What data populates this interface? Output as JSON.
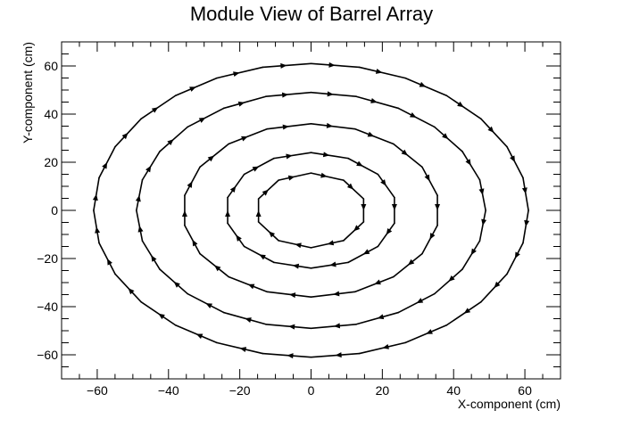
{
  "chart_data": {
    "type": "line",
    "title": "Module View of Barrel Array",
    "xlabel": "X-component (cm)",
    "ylabel": "Y-component (cm)",
    "xlim": [
      -70,
      70
    ],
    "ylim": [
      -70,
      70
    ],
    "x_ticks": [
      -60,
      -40,
      -20,
      0,
      20,
      40,
      60
    ],
    "y_ticks": [
      -60,
      -40,
      -20,
      0,
      20,
      40,
      60
    ],
    "x_minor_step": 5,
    "y_minor_step": 5,
    "grid": false,
    "legend": "none",
    "line_color": "#000000",
    "series": [
      {
        "layer": 1,
        "radius": 15.5,
        "modules": 10,
        "phase_deg": 90
      },
      {
        "layer": 2,
        "radius": 24.0,
        "modules": 14,
        "phase_deg": 90
      },
      {
        "layer": 3,
        "radius": 36.0,
        "modules": 18,
        "phase_deg": 90
      },
      {
        "layer": 4,
        "radius": 49.0,
        "modules": 24,
        "phase_deg": 90
      },
      {
        "layer": 5,
        "radius": 61.0,
        "modules": 28,
        "phase_deg": 90
      }
    ]
  }
}
